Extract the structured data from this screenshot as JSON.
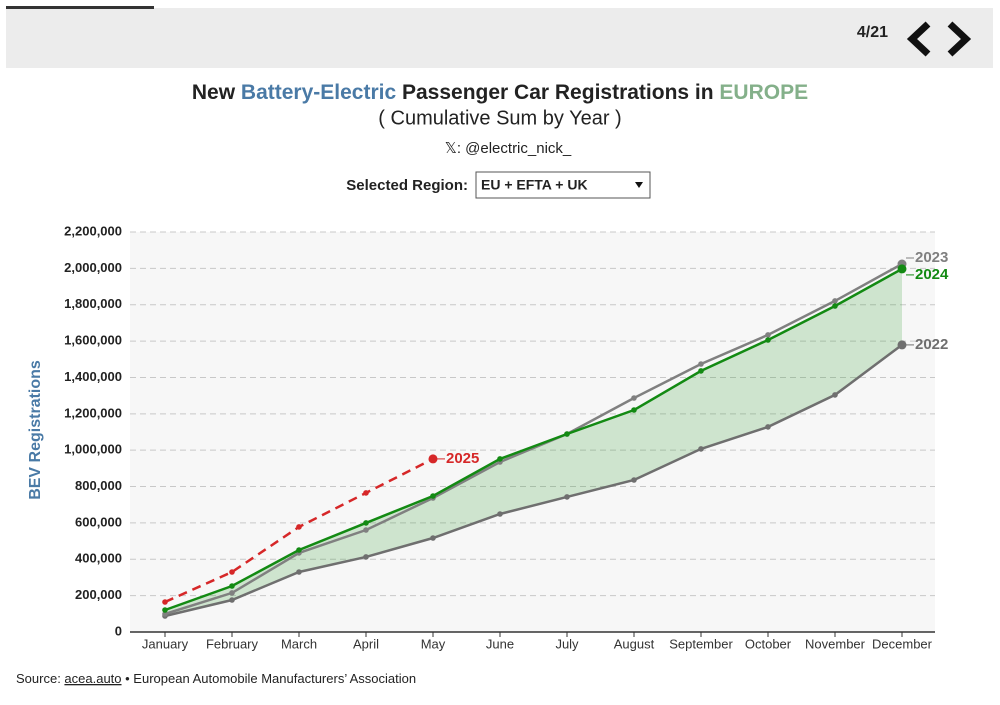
{
  "page_counter": "4/21",
  "handle": "𝕏: @electric_nick_",
  "region_label": "Selected Region:",
  "region_value": "EU + EFTA + UK",
  "source": {
    "prefix": "Source: ",
    "link": "acea.auto",
    "rest": " • European Automobile Manufacturers’ Association"
  },
  "chart_data": {
    "type": "line",
    "title_parts": [
      {
        "text": "New ",
        "color": "#222222"
      },
      {
        "text": "Battery-Electric",
        "color": "#4a7aa6"
      },
      {
        "text": " Passenger Car Registrations in ",
        "color": "#222222"
      },
      {
        "text": "EUROPE",
        "color": "#84b08a"
      }
    ],
    "subtitle": "( Cumulative Sum by Year )",
    "ylabel": "BEV Registrations",
    "categories": [
      "January",
      "February",
      "March",
      "April",
      "May",
      "June",
      "July",
      "August",
      "September",
      "October",
      "November",
      "December"
    ],
    "series": [
      {
        "name": "2025",
        "color": "#d62728",
        "dashed": true,
        "values": [
          165000,
          330000,
          578000,
          765000,
          952000,
          null,
          null,
          null,
          null,
          null,
          null,
          null
        ]
      },
      {
        "name": "2024",
        "color": "#138a13",
        "dashed": false,
        "values": [
          121000,
          253000,
          451000,
          600000,
          748000,
          952000,
          1089000,
          1221000,
          1436000,
          1606000,
          1793000,
          1997000
        ]
      },
      {
        "name": "2023",
        "color": "#808080",
        "dashed": false,
        "values": [
          99000,
          215000,
          435000,
          561000,
          737000,
          935000,
          1089000,
          1287000,
          1474000,
          1634000,
          1821000,
          2024000
        ]
      },
      {
        "name": "2022",
        "color": "#6f6f6f",
        "dashed": false,
        "values": [
          88000,
          176000,
          330000,
          413000,
          517000,
          649000,
          743000,
          836000,
          1007000,
          1128000,
          1304000,
          1579000
        ]
      }
    ],
    "fill_between": [
      1,
      3
    ],
    "fill_color": "#2e9b2e",
    "ylim": [
      0,
      2200000
    ],
    "yticks": [
      0,
      {
        "value": 200000,
        "label": "200,000"
      },
      {
        "value": 400000,
        "label": "400,000"
      },
      {
        "value": 600000,
        "label": "600,000"
      },
      {
        "value": 800000,
        "label": "800,000"
      },
      {
        "value": 1000000,
        "label": "1,000,000"
      },
      {
        "value": 1200000,
        "label": "1,200,000"
      },
      {
        "value": 1400000,
        "label": "1,400,000"
      },
      {
        "value": 1600000,
        "label": "1,600,000"
      },
      {
        "value": 1800000,
        "label": "1,800,000"
      },
      {
        "value": 2000000,
        "label": "2,000,000"
      },
      {
        "value": 2200000,
        "label": "2,200,000"
      }
    ],
    "grid": true
  }
}
